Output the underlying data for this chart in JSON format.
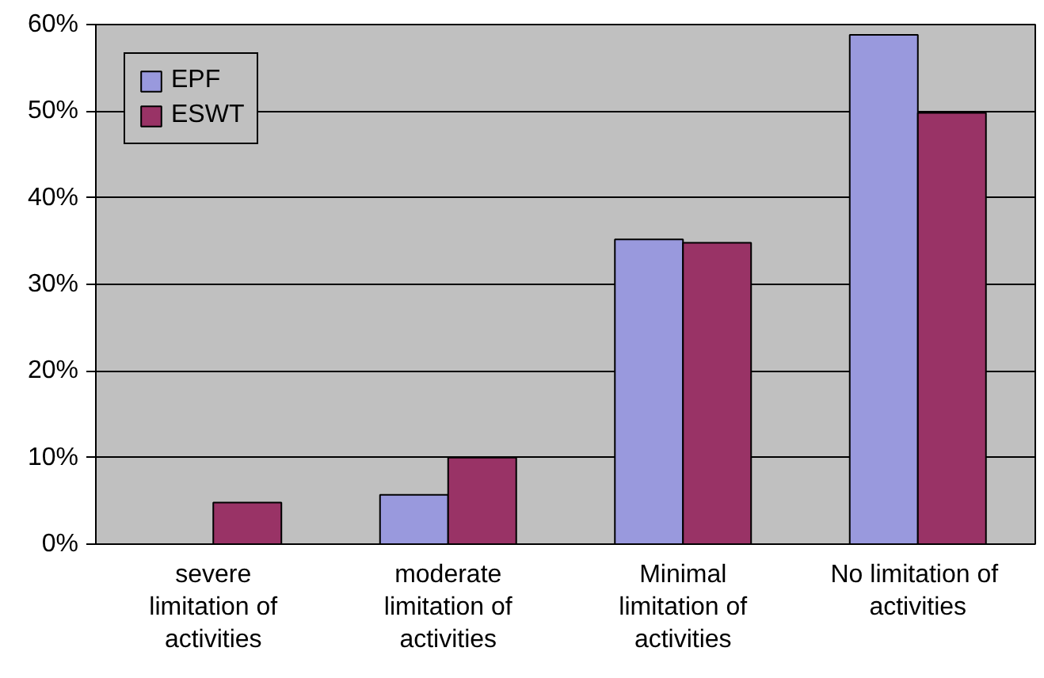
{
  "chart_data": {
    "type": "bar",
    "categories": [
      "severe\nlimitation of\nactivities",
      "moderate\nlimitation of\nactivities",
      "Minimal\nlimitation of\nactivities",
      "No  limitation of\nactivities"
    ],
    "series": [
      {
        "name": "EPF",
        "color": "#9999dd",
        "values": [
          null,
          5.7,
          35.2,
          58.8
        ]
      },
      {
        "name": "ESWT",
        "color": "#993366",
        "values": [
          4.8,
          10,
          34.8,
          49.8
        ]
      }
    ],
    "ylim": [
      0,
      60
    ],
    "yticks": [
      {
        "value": 0,
        "label": "0%"
      },
      {
        "value": 10,
        "label": "10%"
      },
      {
        "value": 20,
        "label": "20%"
      },
      {
        "value": 30,
        "label": "30%"
      },
      {
        "value": 40,
        "label": "40%"
      },
      {
        "value": 50,
        "label": "50%"
      },
      {
        "value": 60,
        "label": "60%"
      }
    ],
    "grid": "y",
    "legend": "top left"
  }
}
